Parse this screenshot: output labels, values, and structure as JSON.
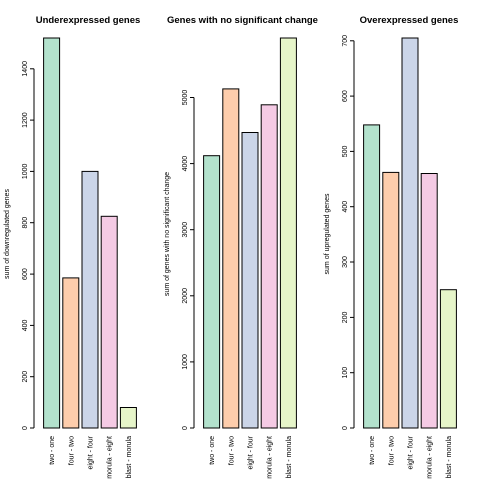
{
  "chart_data": [
    {
      "type": "bar",
      "title": "Underexpressed genes",
      "ylabel": "sum of downregulated genes",
      "categories": [
        "two - one",
        "four - two",
        "eight - four",
        "morula - eight",
        "blast - morula"
      ],
      "values": [
        1520,
        585,
        1000,
        825,
        80
      ],
      "colors": [
        "#b3e2cd",
        "#fdcdac",
        "#cbd5e8",
        "#f4cae4",
        "#e6f5c9"
      ],
      "yticks": [
        0,
        200,
        400,
        600,
        800,
        1000,
        1200,
        1400
      ],
      "ylim": [
        0,
        1520
      ],
      "grid": false,
      "legend": "none"
    },
    {
      "type": "bar",
      "title": "Genes with no significant change",
      "ylabel": "sum of genes with no significant change",
      "categories": [
        "two - one",
        "four - two",
        "eight - four",
        "morula - eight",
        "blast - morula"
      ],
      "values": [
        4120,
        5130,
        4470,
        4890,
        5900
      ],
      "colors": [
        "#b3e2cd",
        "#fdcdac",
        "#cbd5e8",
        "#f4cae4",
        "#e6f5c9"
      ],
      "yticks": [
        0,
        1000,
        2000,
        3000,
        4000,
        5000
      ],
      "ylim": [
        0,
        5900
      ],
      "grid": false,
      "legend": "none"
    },
    {
      "type": "bar",
      "title": "Overexpressed genes",
      "ylabel": "sum of upregulated genes",
      "categories": [
        "two - one",
        "four - two",
        "eight - four",
        "morula - eight",
        "blast - morula"
      ],
      "values": [
        548,
        462,
        705,
        460,
        250
      ],
      "colors": [
        "#b3e2cd",
        "#fdcdac",
        "#cbd5e8",
        "#f4cae4",
        "#e6f5c9"
      ],
      "yticks": [
        0,
        100,
        200,
        300,
        400,
        500,
        600,
        700
      ],
      "ylim": [
        0,
        705
      ],
      "grid": false,
      "legend": "none"
    }
  ]
}
